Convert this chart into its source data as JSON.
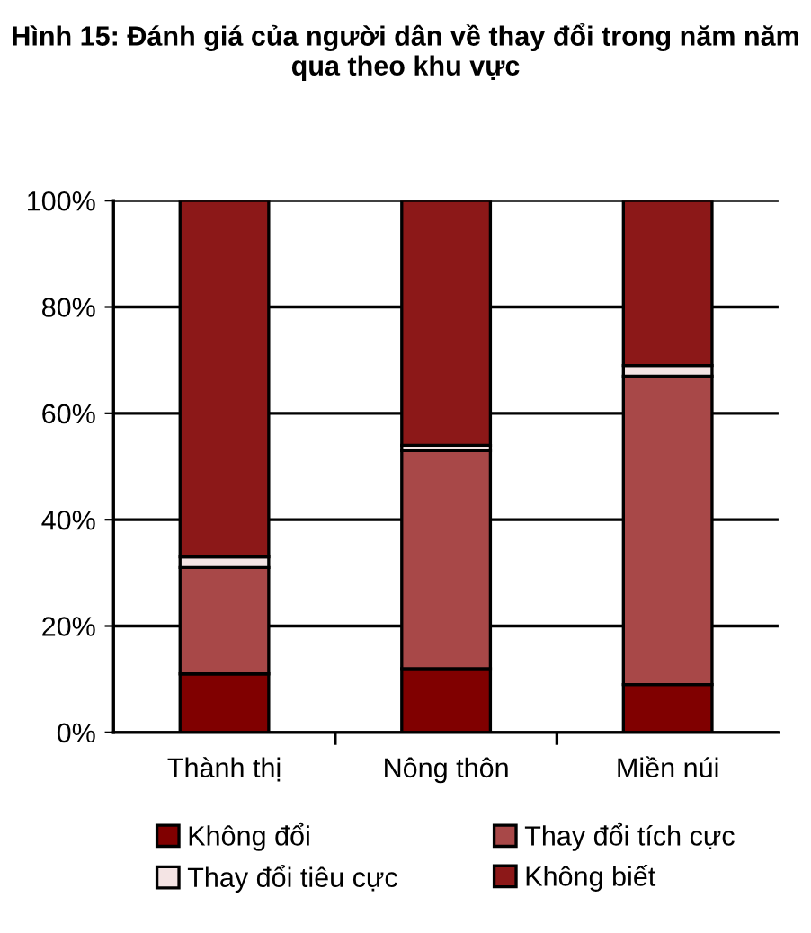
{
  "chart_data": {
    "type": "bar",
    "title": "Hình 15: Đánh giá của người dân về thay đổi trong năm năm qua theo khu vực",
    "categories": [
      "Thành thị",
      "Nông thôn",
      "Miền núi"
    ],
    "stacked": true,
    "series": [
      {
        "name": "Không đổi",
        "color": "#800000",
        "values": [
          11,
          12,
          9
        ]
      },
      {
        "name": "Thay đổi tích cực",
        "color": "#a84848",
        "values": [
          20,
          41,
          58
        ]
      },
      {
        "name": "Thay đổi tiêu cực",
        "color": "#f4e4e4",
        "values": [
          2,
          1,
          2
        ]
      },
      {
        "name": "Không biết",
        "color": "#8c1818",
        "values": [
          67,
          46,
          31
        ]
      }
    ],
    "ylim": [
      0,
      100
    ],
    "yticks": [
      {
        "value": 0,
        "label": "0%"
      },
      {
        "value": 20,
        "label": "20%"
      },
      {
        "value": 40,
        "label": "40%"
      },
      {
        "value": 60,
        "label": "60%"
      },
      {
        "value": 80,
        "label": "80%"
      },
      {
        "value": 100,
        "label": "100%"
      }
    ],
    "grid": "y",
    "legend": "bottom"
  }
}
